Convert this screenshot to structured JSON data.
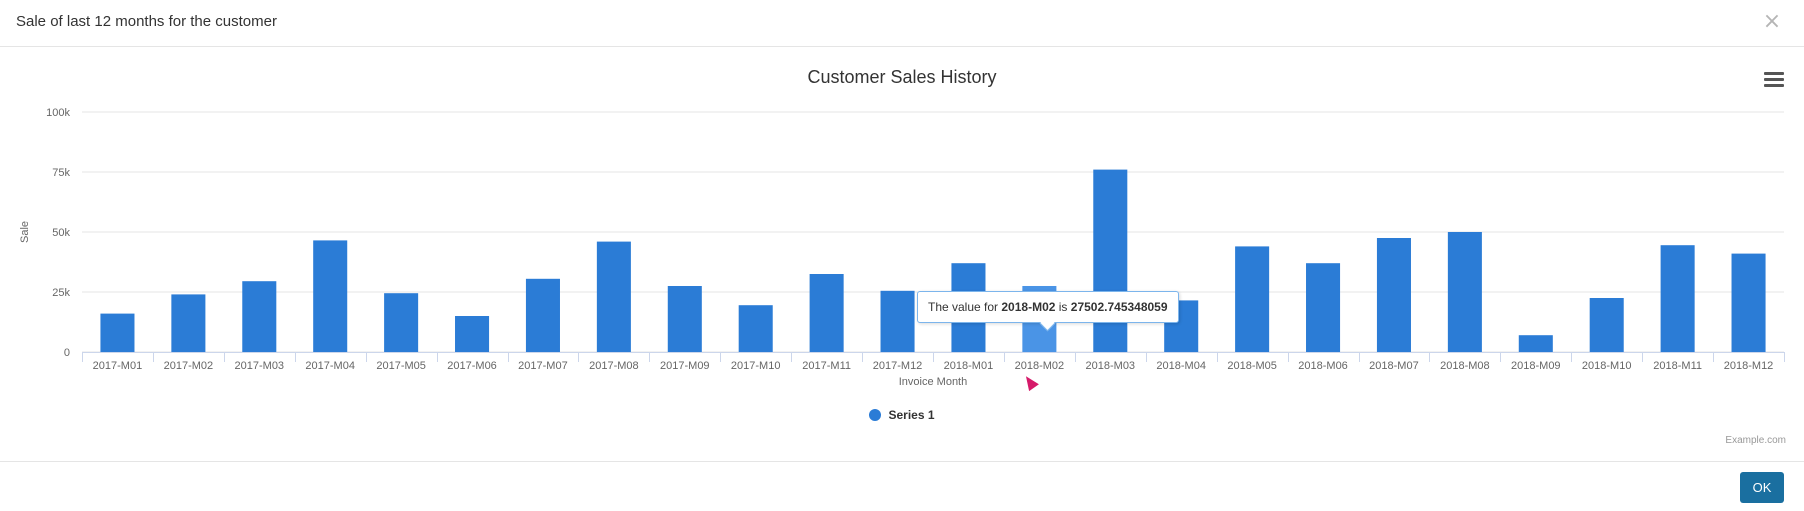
{
  "modal": {
    "title": "Sale of last 12 months for the customer",
    "close_icon": "close-icon",
    "ok_label": "OK"
  },
  "chart": {
    "menu_icon": "hamburger-menu-icon",
    "credit": "Example.com",
    "tooltip": {
      "prefix": "The value for ",
      "category": "2018-M02",
      "middle": " is ",
      "value": "27502.745348059"
    }
  },
  "colors": {
    "bar": "#2b7cd6",
    "bar_hover": "#4a94e6",
    "grid": "#e6e6e6",
    "axis_text": "#666666"
  },
  "chart_data": {
    "type": "bar",
    "title": "Customer Sales History",
    "xlabel": "Invoice Month",
    "ylabel": "Sale",
    "ylim": [
      0,
      100000
    ],
    "yticks": [
      0,
      25000,
      50000,
      75000,
      100000
    ],
    "ytick_labels": [
      "0",
      "25k",
      "50k",
      "75k",
      "100k"
    ],
    "grid": true,
    "legend_position": "bottom-center",
    "categories": [
      "2017-M01",
      "2017-M02",
      "2017-M03",
      "2017-M04",
      "2017-M05",
      "2017-M06",
      "2017-M07",
      "2017-M08",
      "2017-M09",
      "2017-M10",
      "2017-M11",
      "2017-M12",
      "2018-M01",
      "2018-M02",
      "2018-M03",
      "2018-M04",
      "2018-M05",
      "2018-M06",
      "2018-M07",
      "2018-M08",
      "2018-M09",
      "2018-M10",
      "2018-M11",
      "2018-M12"
    ],
    "series": [
      {
        "name": "Series 1",
        "values": [
          16000,
          24000,
          29500,
          46500,
          24500,
          15000,
          30500,
          46000,
          27500,
          19500,
          32500,
          25500,
          37000,
          27502.745348059,
          76000,
          21500,
          44000,
          37000,
          47500,
          50000,
          7000,
          22500,
          44500,
          41000
        ]
      }
    ],
    "highlighted_index": 13
  }
}
